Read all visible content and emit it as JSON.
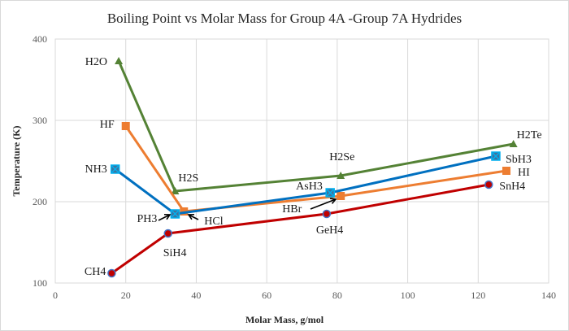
{
  "chart_data": {
    "type": "line",
    "title": "Boiling Point vs Molar Mass for Group 4A -Group 7A Hydrides",
    "xlabel": "Molar Mass, g/mol",
    "ylabel": "Temperature (K)",
    "xlim": [
      0,
      140
    ],
    "ylim": [
      100,
      400
    ],
    "xticks": [
      "0",
      "20",
      "40",
      "60",
      "80",
      "100",
      "120",
      "140"
    ],
    "yticks": [
      "100",
      "200",
      "300",
      "400"
    ],
    "grid": true,
    "legend": "none",
    "series": [
      {
        "color": "#548235",
        "marker": "triangle",
        "points": [
          {
            "label": "H2O",
            "x": 18,
            "y": 373
          },
          {
            "label": "H2S",
            "x": 34,
            "y": 213
          },
          {
            "label": "H2Se",
            "x": 81,
            "y": 232
          },
          {
            "label": "H2Te",
            "x": 130,
            "y": 271
          }
        ]
      },
      {
        "color": "#ed7d31",
        "marker": "square",
        "points": [
          {
            "label": "HF",
            "x": 20,
            "y": 293
          },
          {
            "label": "HCl",
            "x": 36.5,
            "y": 188
          },
          {
            "label": "HBr",
            "x": 81,
            "y": 207
          },
          {
            "label": "HI",
            "x": 128,
            "y": 238
          }
        ]
      },
      {
        "color": "#0070c0",
        "marker": "x-square",
        "points": [
          {
            "label": "NH3",
            "x": 17,
            "y": 240
          },
          {
            "label": "PH3",
            "x": 34,
            "y": 185
          },
          {
            "label": "AsH3",
            "x": 78,
            "y": 211
          },
          {
            "label": "SbH3",
            "x": 125,
            "y": 256
          }
        ]
      },
      {
        "color": "#c00000",
        "marker": "circle",
        "points": [
          {
            "label": "CH4",
            "x": 16,
            "y": 112
          },
          {
            "label": "SiH4",
            "x": 32,
            "y": 161
          },
          {
            "label": "GeH4",
            "x": 77,
            "y": 185
          },
          {
            "label": "SnH4",
            "x": 123,
            "y": 221
          }
        ]
      }
    ]
  }
}
